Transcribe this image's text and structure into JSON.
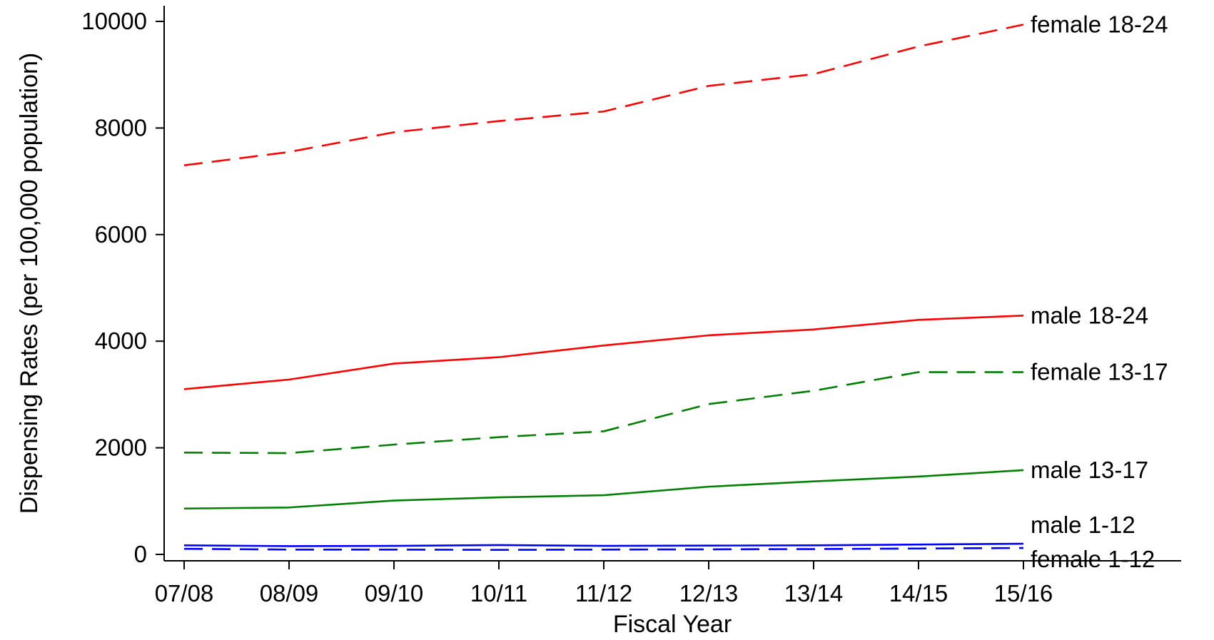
{
  "chart_data": {
    "type": "line",
    "title": "",
    "xlabel": "Fiscal Year",
    "ylabel": "Dispensing Rates (per 100,000 population)",
    "categories": [
      "07/08",
      "08/09",
      "09/10",
      "10/11",
      "11/12",
      "12/13",
      "13/14",
      "14/15",
      "15/16"
    ],
    "ylim": [
      0,
      10000
    ],
    "yticks": [
      "0",
      "2000",
      "4000",
      "6000",
      "8000",
      "10000"
    ],
    "grid": false,
    "legend": "direct labels at right end of lines",
    "series": [
      {
        "name": "female 18-24",
        "color": "#ff0000",
        "dash": "dashed",
        "values": [
          7300,
          7550,
          7920,
          8130,
          8310,
          8790,
          9010,
          9530,
          9940
        ]
      },
      {
        "name": "male 18-24",
        "color": "#ff0000",
        "dash": "solid",
        "values": [
          3100,
          3280,
          3580,
          3700,
          3920,
          4110,
          4220,
          4400,
          4480
        ]
      },
      {
        "name": "female 13-17",
        "color": "#008000",
        "dash": "dashed",
        "values": [
          1910,
          1900,
          2060,
          2200,
          2310,
          2820,
          3070,
          3420,
          3420
        ]
      },
      {
        "name": "male 13-17",
        "color": "#008000",
        "dash": "solid",
        "values": [
          860,
          880,
          1010,
          1070,
          1110,
          1270,
          1370,
          1460,
          1580
        ]
      },
      {
        "name": "male 1-12",
        "color": "#0000ff",
        "dash": "solid",
        "values": [
          170,
          155,
          160,
          175,
          160,
          165,
          170,
          185,
          200
        ]
      },
      {
        "name": "female 1-12",
        "color": "#0000ff",
        "dash": "dashed",
        "values": [
          105,
          90,
          90,
          85,
          90,
          95,
          100,
          110,
          120
        ]
      }
    ]
  }
}
